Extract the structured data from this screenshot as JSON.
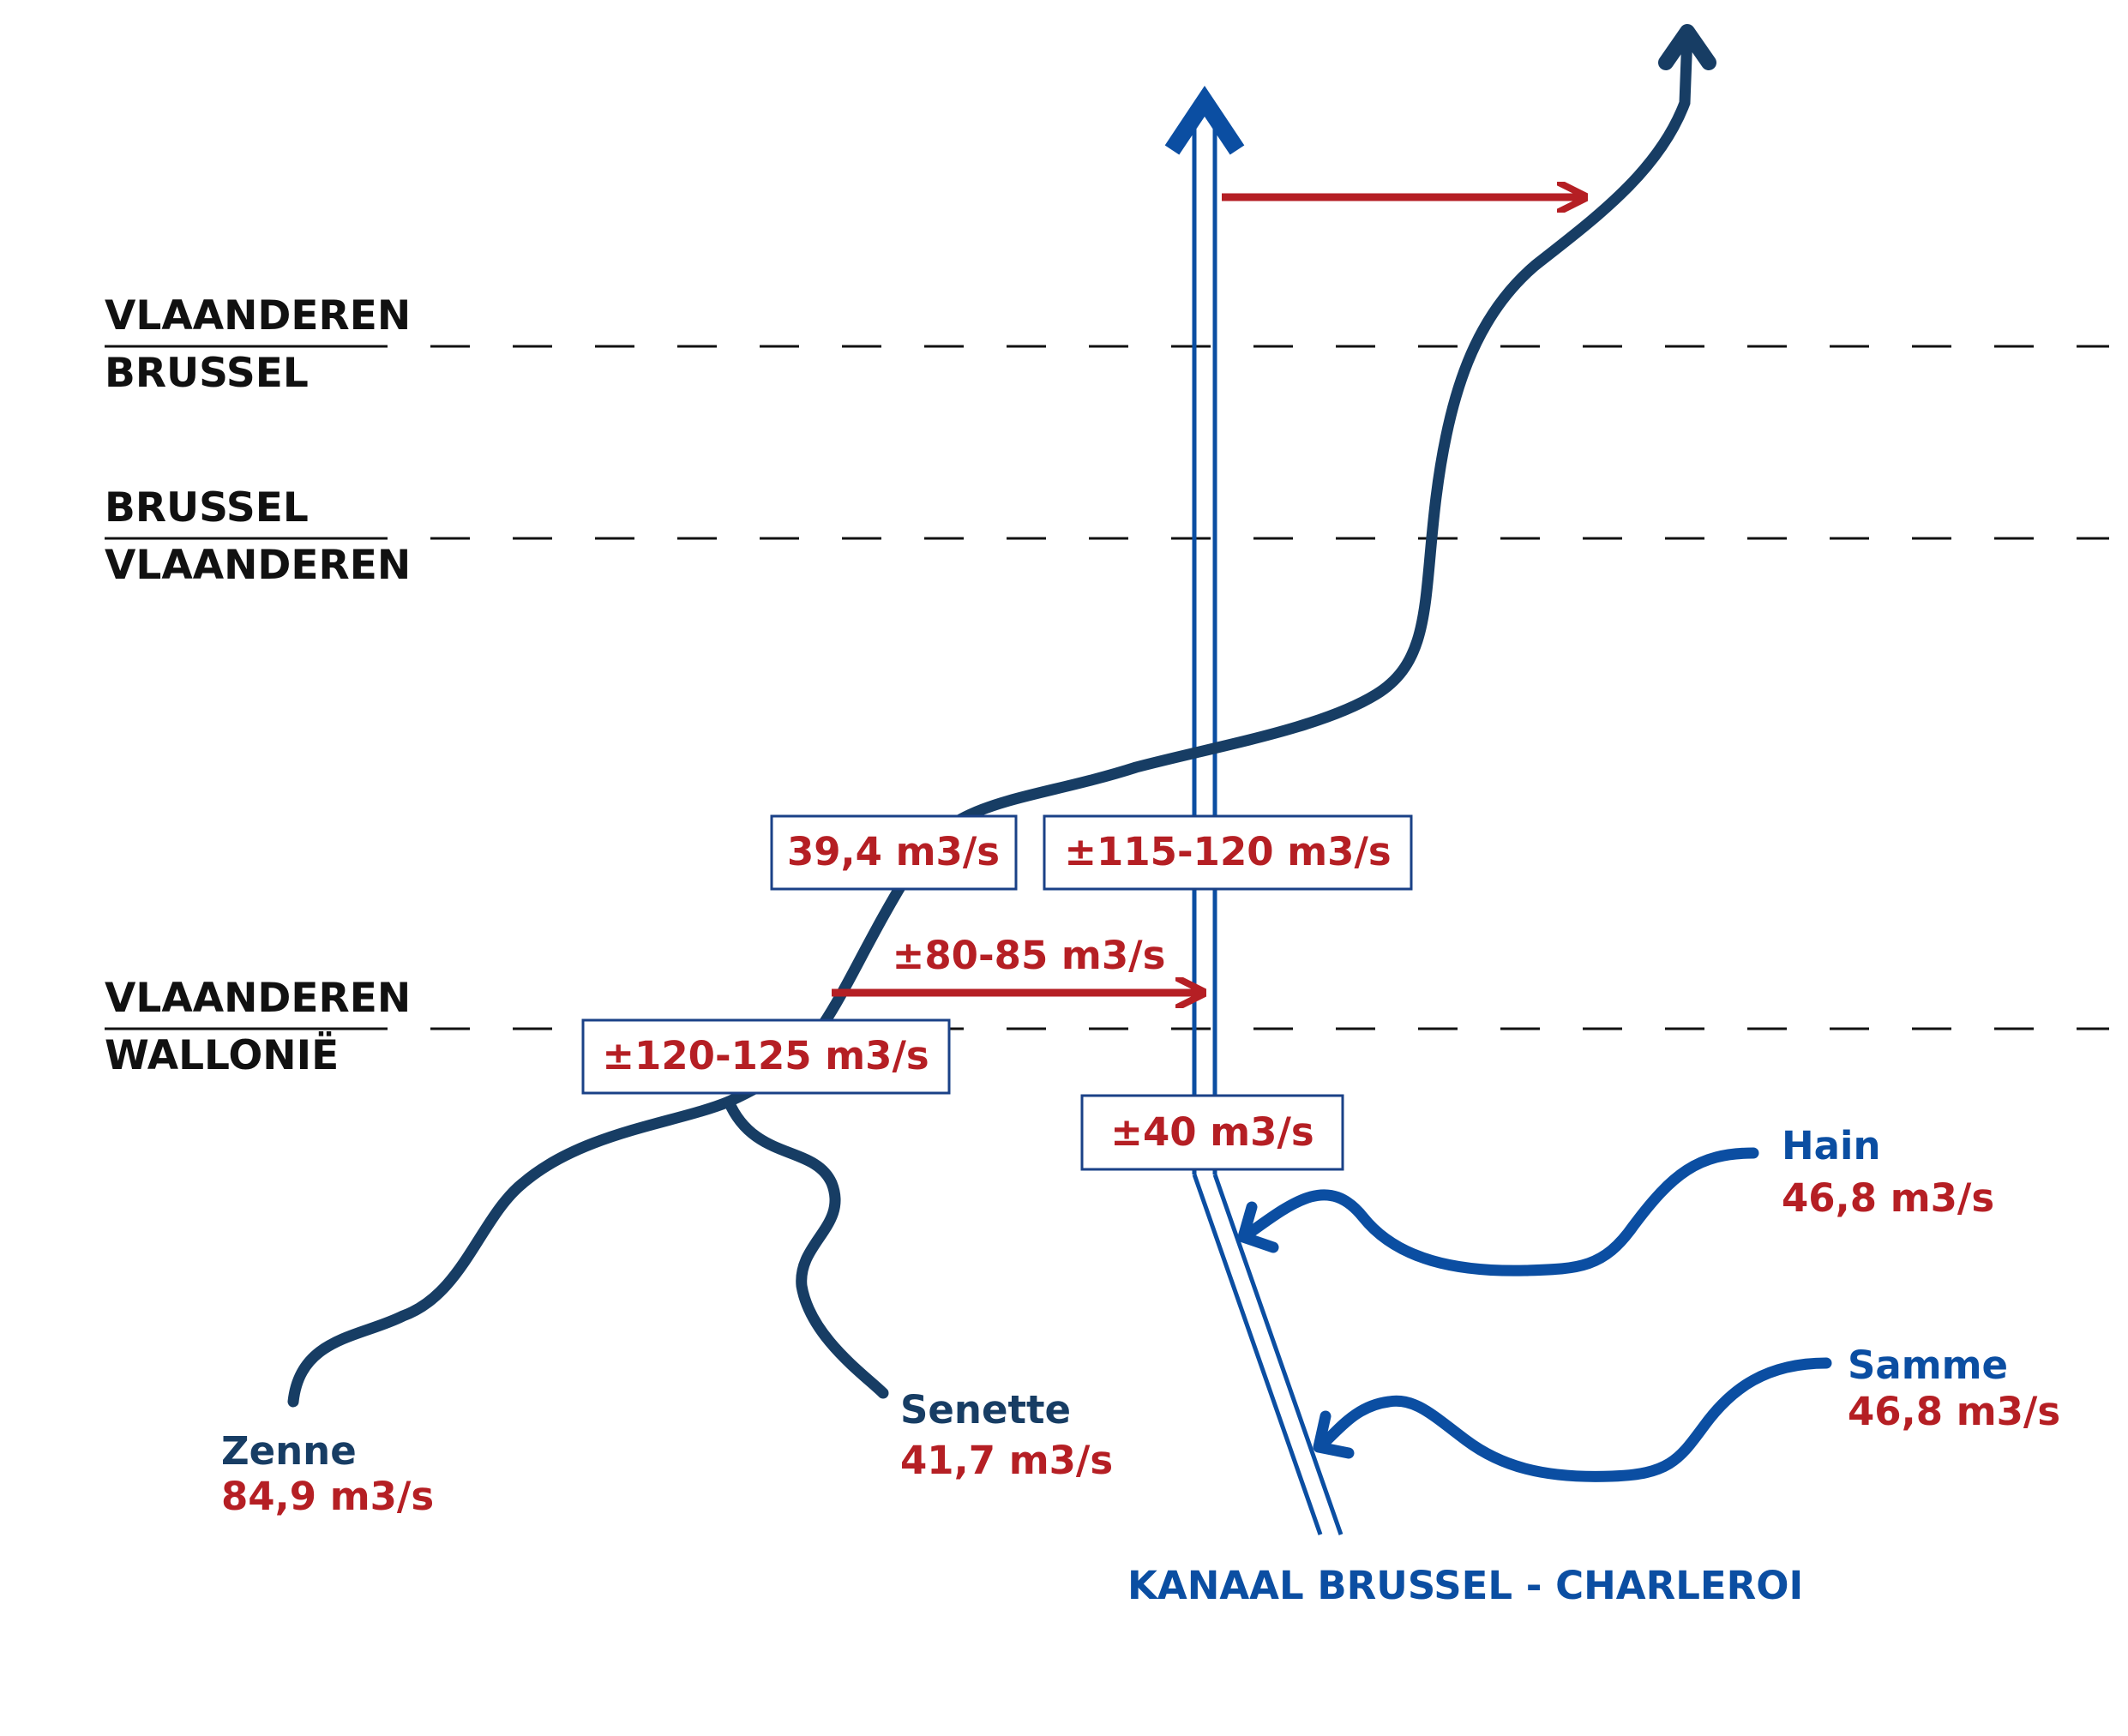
{
  "borders": {
    "vl_br": {
      "top": "VLAANDEREN",
      "bottom": "BRUSSEL"
    },
    "br_vl": {
      "top": "BRUSSEL",
      "bottom": "VLAANDEREN"
    },
    "vl_wa": {
      "top": "VLAANDEREN",
      "bottom": "WALLONIË"
    }
  },
  "rivers": {
    "zenne": {
      "name": "Zenne",
      "flow": "84,9 m3/s"
    },
    "senette": {
      "name": "Senette",
      "flow": "41,7 m3/s"
    },
    "hain": {
      "name": "Hain",
      "flow": "46,8 m3/s"
    },
    "samme": {
      "name": "Samme",
      "flow": "46,8 m3/s"
    }
  },
  "canal": {
    "name": "KANAAL BRUSSEL - CHARLEROI"
  },
  "flows": {
    "river_after_diversion": "39,4 m3/s",
    "canal_after_diversion": "±115-120 m3/s",
    "diversion": "±80-85 m3/s",
    "river_at_border": "±120-125 m3/s",
    "canal_upstream": "±40 m3/s"
  },
  "colors": {
    "river": "#173d64",
    "canal": "#0b4ea2",
    "transfer_arrow": "#b51f24",
    "value_text": "#b51f24",
    "border_line": "#111111"
  }
}
